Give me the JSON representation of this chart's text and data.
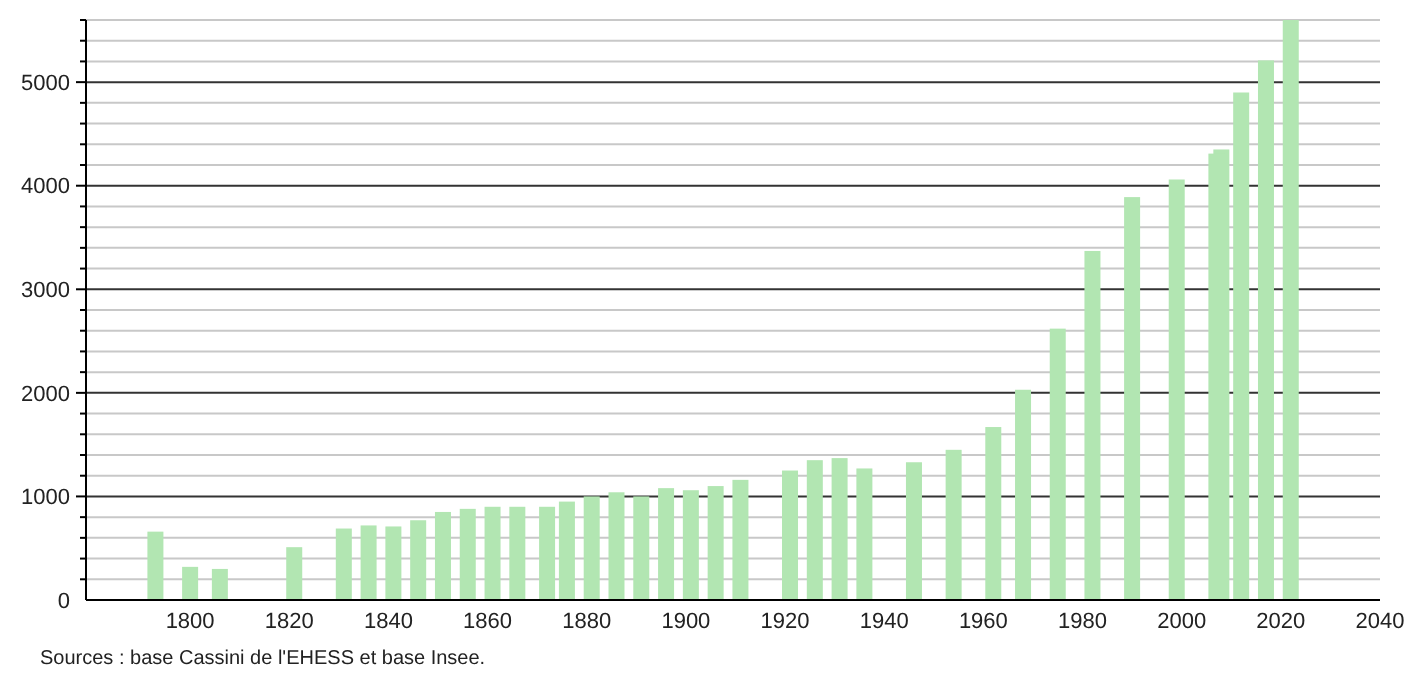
{
  "chart_data": {
    "type": "bar",
    "color": "#b2e6b2",
    "x": [
      1793,
      1800,
      1806,
      1821,
      1831,
      1836,
      1841,
      1846,
      1851,
      1856,
      1861,
      1866,
      1872,
      1876,
      1881,
      1886,
      1891,
      1896,
      1901,
      1906,
      1911,
      1921,
      1926,
      1931,
      1936,
      1946,
      1954,
      1962,
      1968,
      1975,
      1982,
      1990,
      1999,
      2007,
      2008,
      2012,
      2017,
      2022
    ],
    "values": [
      660,
      320,
      300,
      510,
      690,
      720,
      710,
      770,
      850,
      880,
      900,
      900,
      900,
      950,
      1000,
      1040,
      1000,
      1080,
      1060,
      1100,
      1160,
      1250,
      1350,
      1370,
      1270,
      1330,
      1450,
      1670,
      2030,
      2620,
      3370,
      3890,
      4060,
      4310,
      4350,
      4900,
      5210,
      5600
    ],
    "xlim": [
      1779,
      2040
    ],
    "xticks": [
      1800,
      1820,
      1840,
      1860,
      1880,
      1900,
      1920,
      1940,
      1960,
      1980,
      2000,
      2020,
      2040
    ],
    "ylim": [
      0,
      5600
    ],
    "yticks": [
      0,
      {
        "value": 200,
        "label": null
      },
      {
        "value": 400,
        "label": null
      },
      {
        "value": 600,
        "label": null
      },
      {
        "value": 800,
        "label": null
      },
      1000,
      {
        "value": 1200,
        "label": null
      },
      {
        "value": 1400,
        "label": null
      },
      {
        "value": 1600,
        "label": null
      },
      {
        "value": 1800,
        "label": null
      },
      2000,
      {
        "value": 2200,
        "label": null
      },
      {
        "value": 2400,
        "label": null
      },
      {
        "value": 2600,
        "label": null
      },
      {
        "value": 2800,
        "label": null
      },
      3000,
      {
        "value": 3200,
        "label": null
      },
      {
        "value": 3400,
        "label": null
      },
      {
        "value": 3600,
        "label": null
      },
      {
        "value": 3800,
        "label": null
      },
      4000,
      {
        "value": 4200,
        "label": null
      },
      {
        "value": 4400,
        "label": null
      },
      {
        "value": 4600,
        "label": null
      },
      {
        "value": 4800,
        "label": null
      },
      5000,
      {
        "value": 5200,
        "label": null
      },
      {
        "value": 5400,
        "label": null
      },
      {
        "value": 5600,
        "label": null
      }
    ],
    "grid": "y",
    "annotations": [
      "Sources : base Cassini de l'EHESS et base Insee."
    ]
  }
}
